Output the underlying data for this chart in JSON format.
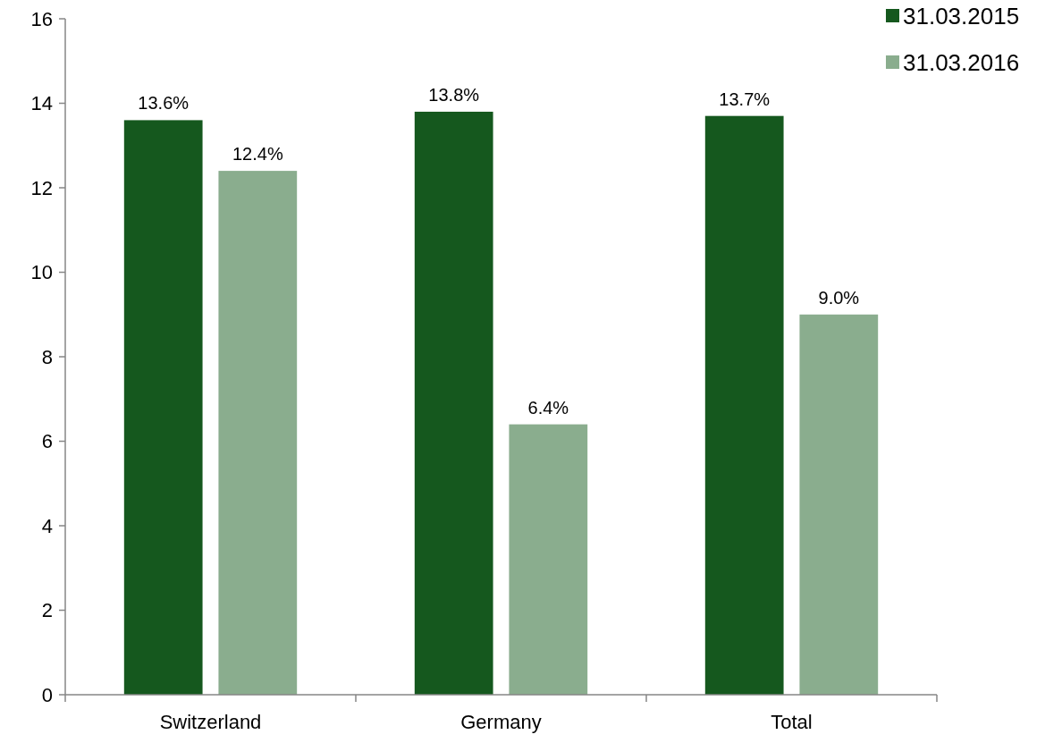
{
  "chart_data": {
    "type": "bar",
    "categories": [
      "Switzerland",
      "Germany",
      "Total"
    ],
    "series": [
      {
        "name": "31.03.2015",
        "color": "#15581e",
        "values": [
          13.6,
          13.8,
          13.7
        ],
        "value_labels": [
          "13.6%",
          "13.8%",
          "13.7%"
        ]
      },
      {
        "name": "31.03.2016",
        "color": "#8aad8e",
        "values": [
          12.4,
          6.4,
          9.0
        ],
        "value_labels": [
          "12.4%",
          "6.4%",
          "9.0%"
        ]
      }
    ],
    "ylim": [
      0,
      16
    ],
    "yticks": [
      0,
      2,
      4,
      6,
      8,
      10,
      12,
      14,
      16
    ],
    "grid": false,
    "legend": "top right"
  }
}
